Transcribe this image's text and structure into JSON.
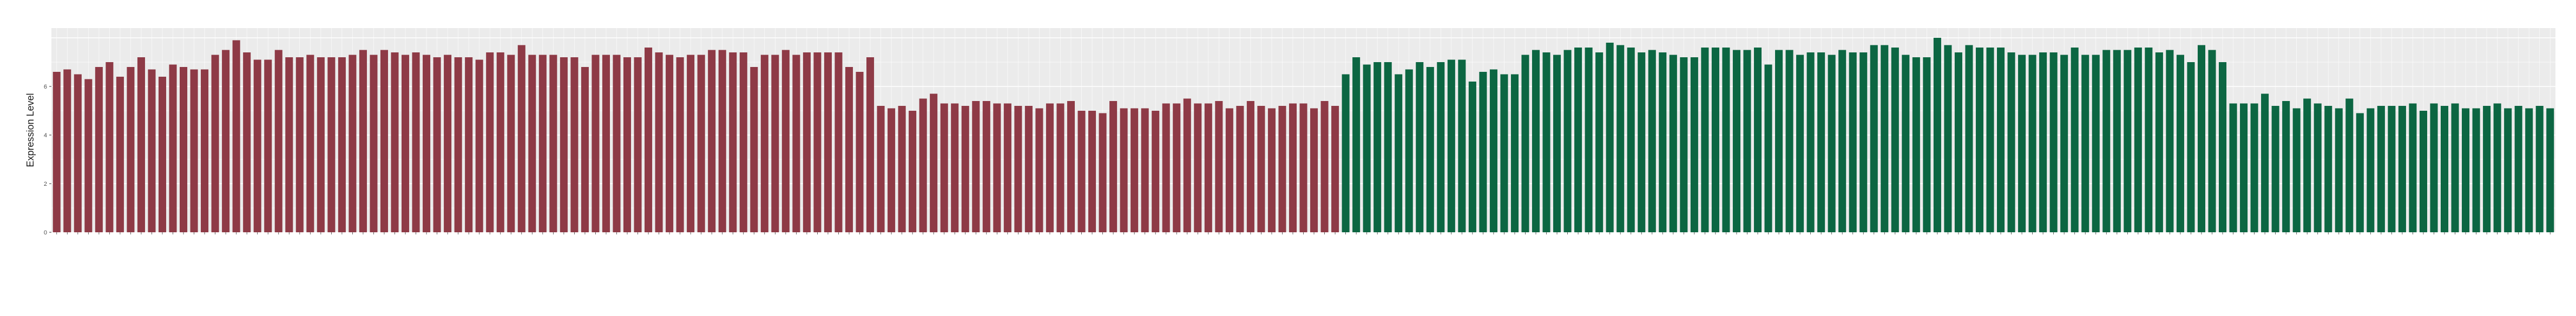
{
  "chart_data": {
    "type": "bar",
    "title": "",
    "xlabel": "",
    "ylabel": "Expression Level",
    "ylim": [
      0,
      8.4
    ],
    "yticks": [
      0,
      2,
      4,
      6
    ],
    "grid": true,
    "legend": "none",
    "colors": {
      "first_group": "#8e3a46",
      "second_group": "#0c6642",
      "panel_bg": "#ebebeb",
      "grid": "#ffffff"
    },
    "series": [
      {
        "values": [
          6.6,
          6.7,
          6.5,
          6.3,
          6.8,
          7.0,
          6.4,
          6.8,
          7.2,
          6.7,
          6.4,
          6.9,
          6.8,
          6.7,
          6.7,
          7.3,
          7.5,
          7.9,
          7.4,
          7.1,
          7.1,
          7.5,
          7.2,
          7.2,
          7.3,
          7.2,
          7.2,
          7.2,
          7.3,
          7.5,
          7.3,
          7.5,
          7.4,
          7.3,
          7.4,
          7.3,
          7.2,
          7.3,
          7.2,
          7.2,
          7.1,
          7.4,
          7.4,
          7.3,
          7.7,
          7.3,
          7.3,
          7.3,
          7.2,
          7.2,
          6.8,
          7.3,
          7.3,
          7.3,
          7.2,
          7.2,
          7.6,
          7.4,
          7.3,
          7.2,
          7.3,
          7.3,
          7.5,
          7.5,
          7.4,
          7.4,
          6.8,
          7.3,
          7.3,
          7.5,
          7.3,
          7.4,
          7.4,
          7.4,
          7.4,
          6.8,
          6.6,
          7.2,
          5.2,
          5.1,
          5.2,
          5.0,
          5.5,
          5.7,
          5.3,
          5.3,
          5.2,
          5.4,
          5.4,
          5.3,
          5.3,
          5.2,
          5.2,
          5.1,
          5.3,
          5.3,
          5.4,
          5.0,
          5.0,
          4.9,
          5.4,
          5.1,
          5.1,
          5.1,
          5.0,
          5.3,
          5.3,
          5.5,
          5.3,
          5.3,
          5.4,
          5.1,
          5.2,
          5.4,
          5.2,
          5.1,
          5.2,
          5.3,
          5.3,
          5.1,
          5.4,
          5.2
        ],
        "colors_by_group": true
      },
      {
        "values": [
          6.5,
          7.2,
          6.9,
          7.0,
          7.0,
          6.5,
          6.7,
          7.0,
          6.8,
          7.0,
          7.1,
          7.1,
          6.2,
          6.6,
          6.7,
          6.5,
          6.5,
          7.3,
          7.5,
          7.4,
          7.3,
          7.5,
          7.6,
          7.6,
          7.4,
          7.8,
          7.7,
          7.6,
          7.4,
          7.5,
          7.4,
          7.3,
          7.2,
          7.2,
          7.6,
          7.6,
          7.6,
          7.5,
          7.5,
          7.6,
          6.9,
          7.5,
          7.5,
          7.3,
          7.4,
          7.4,
          7.3,
          7.5,
          7.4,
          7.4,
          7.7,
          7.7,
          7.6,
          7.3,
          7.2,
          7.2,
          8.0,
          7.7,
          7.4,
          7.7,
          7.6,
          7.6,
          7.6,
          7.4,
          7.3,
          7.3,
          7.4,
          7.4,
          7.3,
          7.6,
          7.3,
          7.3,
          7.5,
          7.5,
          7.5,
          7.6,
          7.6,
          7.4,
          7.5,
          7.3,
          7.0,
          7.7,
          7.5,
          7.0,
          5.3,
          5.3,
          5.3,
          5.7,
          5.2,
          5.4,
          5.1,
          5.5,
          5.3,
          5.2,
          5.1,
          5.5,
          4.9,
          5.1,
          5.2,
          5.2,
          5.2,
          5.3,
          5.0,
          5.3,
          5.2,
          5.3,
          5.1,
          5.1,
          5.2,
          5.3,
          5.1,
          5.2,
          5.1,
          5.2,
          5.1
        ]
      }
    ]
  }
}
